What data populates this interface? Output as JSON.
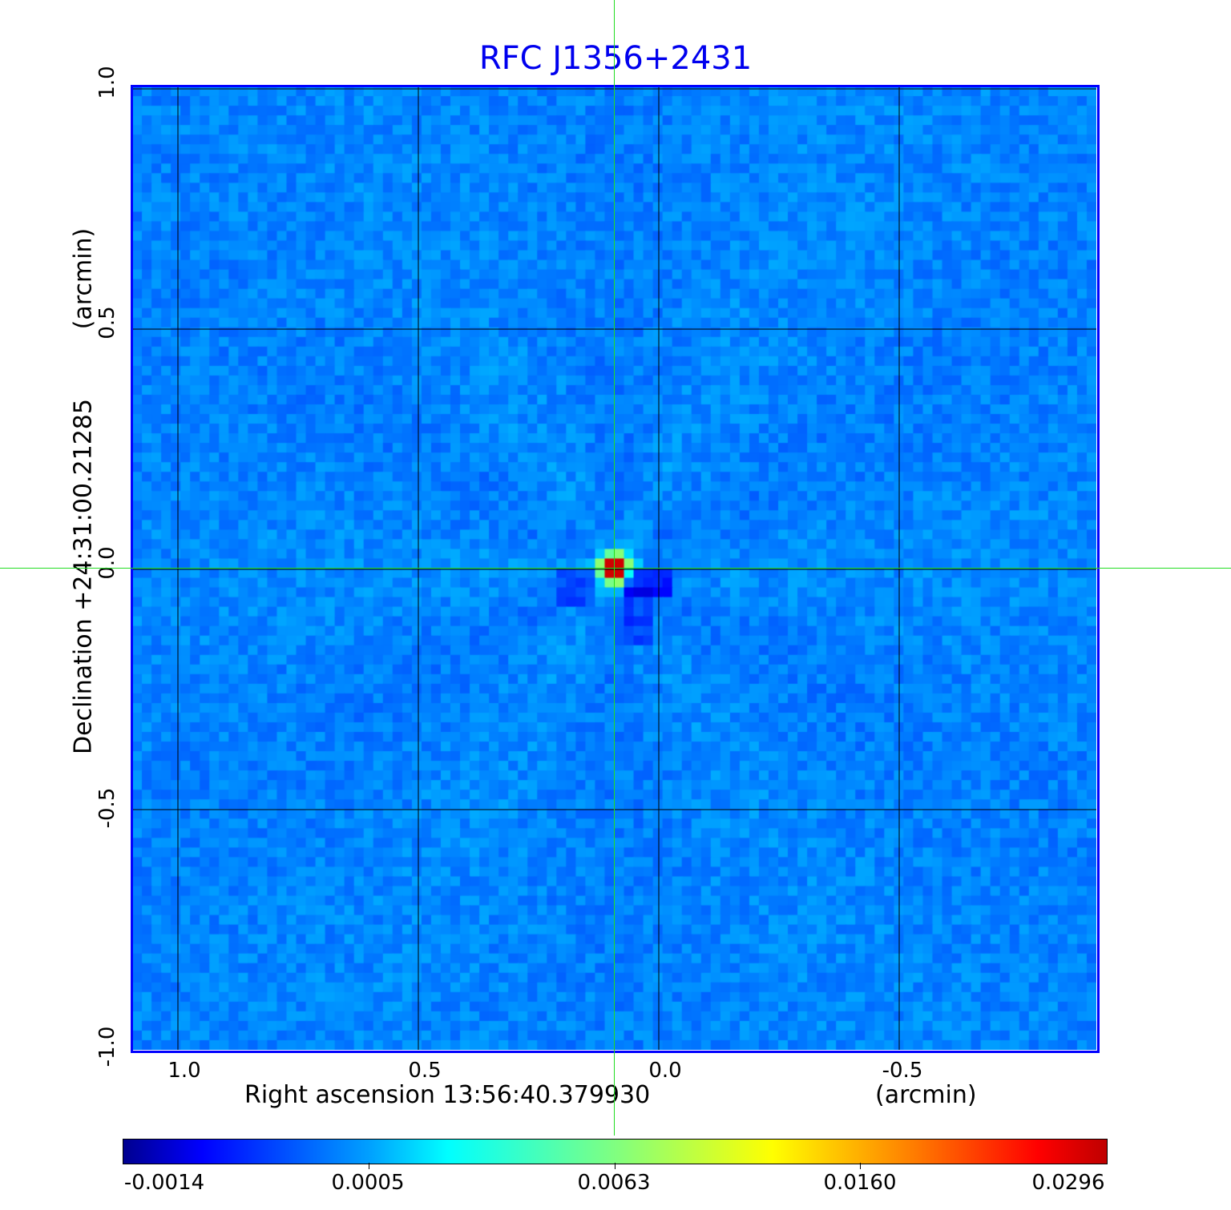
{
  "chart_data": {
    "type": "heatmap",
    "title": "RFC J1356+2431",
    "xlabel": "Right ascension  13:56:40.379930",
    "xunit": "(arcmin)",
    "ylabel": "Declination  +24:31:00.21285",
    "yunit": "(arcmin)",
    "x_ticks": [
      "1.0",
      "0.5",
      "0.0",
      "-0.5"
    ],
    "y_ticks": [
      "1.0",
      "0.5",
      "0.0",
      "-0.5",
      "-1.0"
    ],
    "xlim": [
      1.095,
      -0.91
    ],
    "ylim": [
      -1.0,
      1.0
    ],
    "grid": true,
    "colormap": "jet",
    "colorbar": {
      "ticks": [
        "-0.0014",
        "0.0005",
        "0.0063",
        "0.0160",
        "0.0296"
      ],
      "range": [
        -0.0014,
        0.0296
      ],
      "placement": "bottom"
    },
    "source": {
      "x": 0.09,
      "y": 0.0,
      "peak": 0.0296
    },
    "crosshair": {
      "x": 0.09,
      "y": 0.005,
      "color": "#22dd22"
    },
    "frame_color": "#0000ff",
    "title_color": "#0000ee"
  }
}
